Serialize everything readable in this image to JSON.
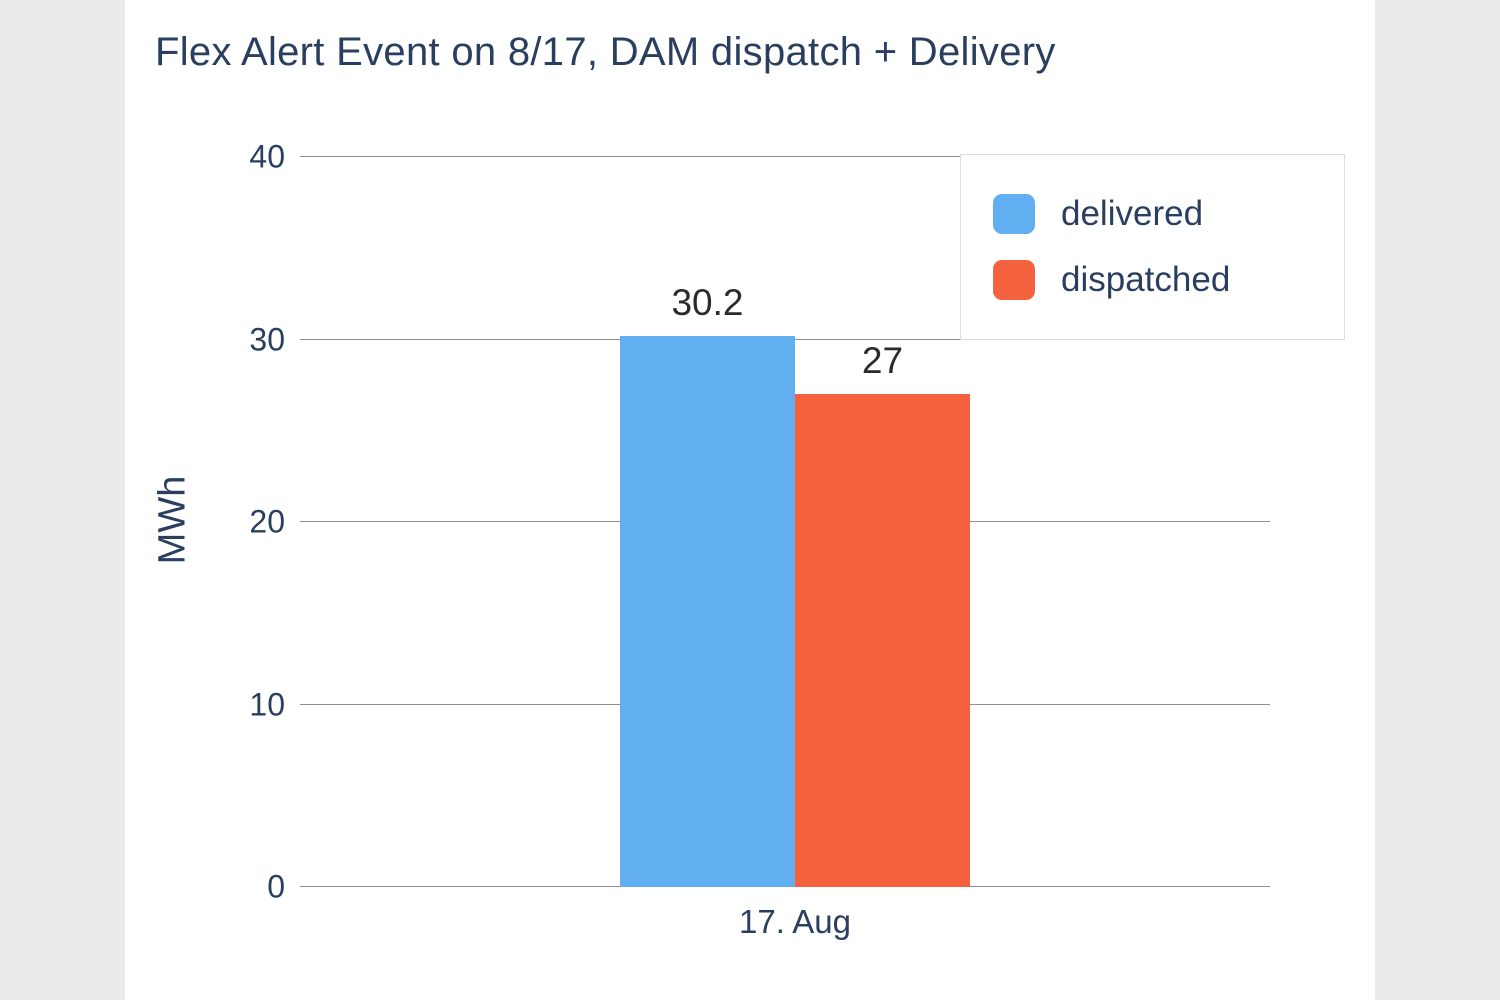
{
  "chart_data": {
    "type": "bar",
    "title": "Flex Alert Event on 8/17, DAM dispatch + Delivery",
    "categories": [
      "17. Aug"
    ],
    "series": [
      {
        "name": "delivered",
        "color": "#61aff0",
        "values": [
          30.2
        ]
      },
      {
        "name": "dispatched",
        "color": "#f4613c",
        "values": [
          27
        ]
      }
    ],
    "value_labels": [
      "30.2",
      "27"
    ],
    "xlabel": "",
    "ylabel": "MWh",
    "ylim": [
      0,
      40
    ],
    "yticks": [
      0,
      10,
      20,
      30,
      40
    ],
    "grid": true,
    "legend_position": "top-right",
    "colors": {
      "title_text": "#2a3f5f",
      "axis_text": "#2a3f5f",
      "gridline": "#8f8f8f",
      "page_background": "#ebebeb",
      "plot_background": "#ffffff"
    }
  }
}
